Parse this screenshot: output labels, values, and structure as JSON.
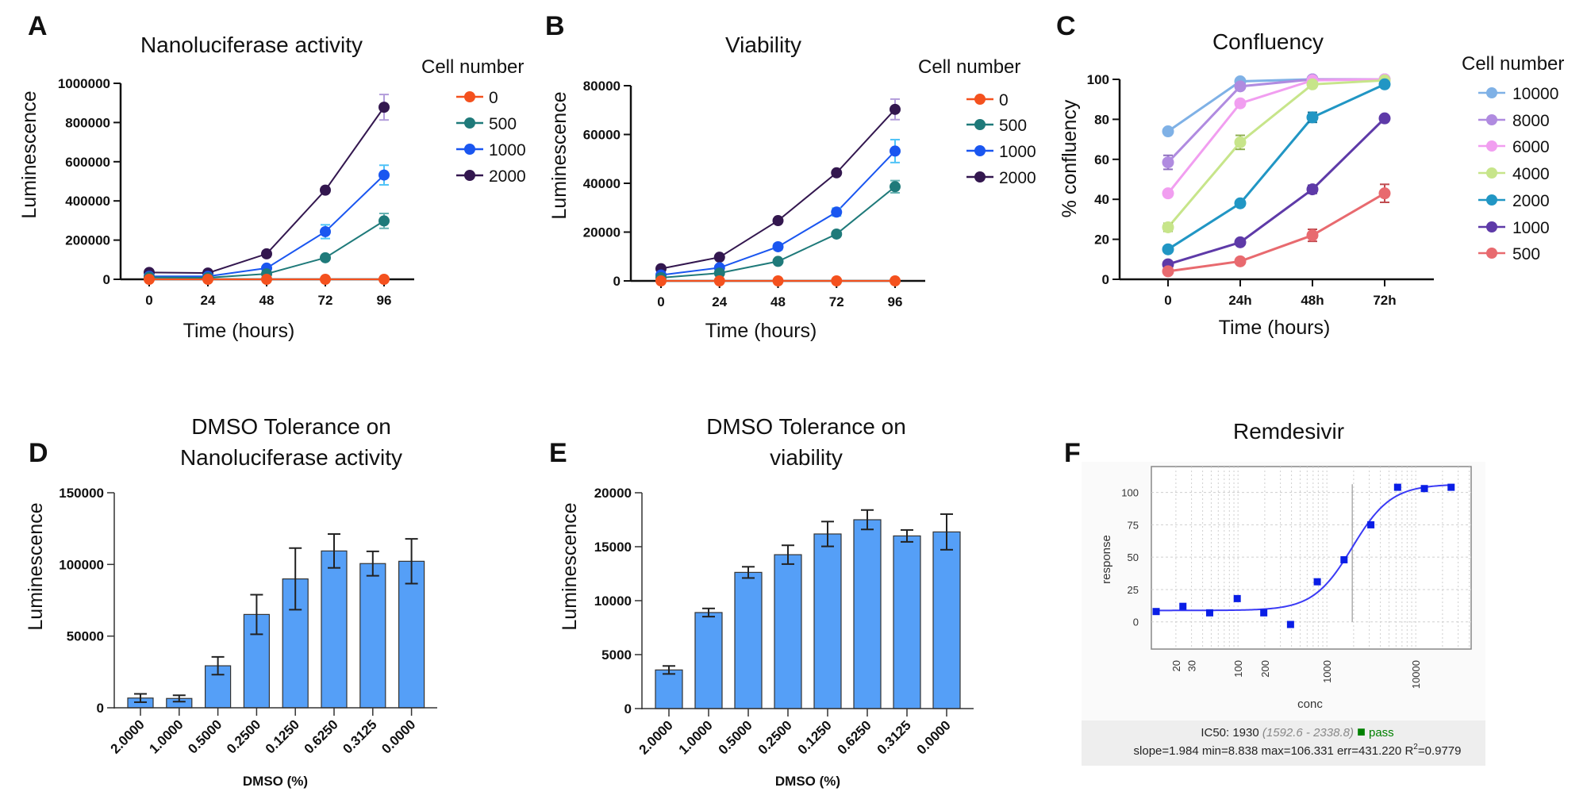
{
  "figure": {
    "panel_labels": [
      "A",
      "B",
      "C",
      "D",
      "E",
      "F"
    ]
  },
  "chart_data": [
    {
      "panel": "A",
      "type": "line",
      "title": "Nanoluciferase activity",
      "xlabel": "Time (hours)",
      "ylabel": "Luminescence",
      "x": [
        0,
        24,
        48,
        72,
        96
      ],
      "x_tick_labels": [
        "0",
        "24",
        "48",
        "72",
        "96"
      ],
      "ylim": [
        0,
        1000000
      ],
      "y_ticks": [
        0,
        200000,
        400000,
        600000,
        800000,
        1000000
      ],
      "grid": false,
      "legend_title": "Cell number",
      "legend_position": "right",
      "series": [
        {
          "name": "0",
          "color": "#f4511e",
          "error_color": "#f4511e",
          "values": [
            0,
            0,
            0,
            0,
            0
          ],
          "errors": [
            0,
            0,
            0,
            0,
            0
          ]
        },
        {
          "name": "500",
          "color": "#1f7a7a",
          "error_color": "#66b2b2",
          "values": [
            10000,
            8000,
            28000,
            110000,
            298000
          ],
          "errors": [
            0,
            0,
            4000,
            8000,
            38000
          ]
        },
        {
          "name": "1000",
          "color": "#1a56f0",
          "error_color": "#4fc3f7",
          "values": [
            15000,
            15000,
            57000,
            243000,
            532000
          ],
          "errors": [
            0,
            0,
            6000,
            35000,
            50000
          ]
        },
        {
          "name": "2000",
          "color": "#33174f",
          "error_color": "#b39ddb",
          "values": [
            35000,
            32000,
            130000,
            455000,
            878000
          ],
          "errors": [
            3000,
            3000,
            15000,
            10000,
            65000
          ]
        }
      ]
    },
    {
      "panel": "B",
      "type": "line",
      "title": "Viability",
      "xlabel": "Time (hours)",
      "ylabel": "Luminescence",
      "x": [
        0,
        24,
        48,
        72,
        96
      ],
      "x_tick_labels": [
        "0",
        "24",
        "48",
        "72",
        "96"
      ],
      "ylim": [
        0,
        80000
      ],
      "y_ticks": [
        0,
        20000,
        40000,
        60000,
        80000
      ],
      "grid": false,
      "legend_title": "Cell number",
      "legend_position": "right",
      "series": [
        {
          "name": "0",
          "color": "#f4511e",
          "error_color": "#f4511e",
          "values": [
            0,
            0,
            0,
            0,
            0
          ],
          "errors": [
            0,
            0,
            0,
            0,
            0
          ]
        },
        {
          "name": "500",
          "color": "#1f7a7a",
          "error_color": "#66b2b2",
          "values": [
            1300,
            3200,
            8000,
            19200,
            38600
          ],
          "errors": [
            0,
            0,
            400,
            600,
            2500
          ]
        },
        {
          "name": "1000",
          "color": "#1a56f0",
          "error_color": "#4fc3f7",
          "values": [
            2400,
            5400,
            14000,
            28200,
            53200
          ],
          "errors": [
            300,
            400,
            1200,
            1600,
            4700
          ]
        },
        {
          "name": "2000",
          "color": "#33174f",
          "error_color": "#b39ddb",
          "values": [
            5000,
            9700,
            24700,
            44300,
            70300
          ],
          "errors": [
            300,
            400,
            600,
            800,
            4200
          ]
        }
      ]
    },
    {
      "panel": "C",
      "type": "line",
      "title": "Confluency",
      "xlabel": "Time (hours)",
      "ylabel": "% confluency",
      "x": [
        0,
        24,
        48,
        72
      ],
      "x_tick_labels": [
        "0",
        "24h",
        "48h",
        "72h"
      ],
      "ylim": [
        0,
        100
      ],
      "y_ticks": [
        0,
        20,
        40,
        60,
        80,
        100
      ],
      "grid": false,
      "legend_title": "Cell number",
      "legend_position": "right",
      "series": [
        {
          "name": "10000",
          "color": "#7fb1e6",
          "error_color": "#7fb1e6",
          "values": [
            74,
            99,
            100,
            100
          ],
          "errors": [
            1,
            1,
            0.5,
            0.5
          ]
        },
        {
          "name": "8000",
          "color": "#b08be0",
          "error_color": "#9070c0",
          "values": [
            58.5,
            96.5,
            100,
            100
          ],
          "errors": [
            3.5,
            1,
            0.5,
            0.5
          ]
        },
        {
          "name": "6000",
          "color": "#f19ef0",
          "error_color": "#e07de0",
          "values": [
            43,
            88,
            99.5,
            100
          ],
          "errors": [
            1.5,
            1.5,
            0.5,
            0.5
          ]
        },
        {
          "name": "4000",
          "color": "#c7e58a",
          "error_color": "#8fb050",
          "values": [
            26,
            68.5,
            97.5,
            99.5
          ],
          "errors": [
            2,
            3.5,
            1,
            0.5
          ]
        },
        {
          "name": "2000",
          "color": "#2196c4",
          "error_color": "#1a6f90",
          "values": [
            15,
            38,
            81,
            97.5
          ],
          "errors": [
            1,
            1,
            2.5,
            1
          ]
        },
        {
          "name": "1000",
          "color": "#5e3aa8",
          "error_color": "#3e2578",
          "values": [
            7.5,
            18.5,
            45,
            80.5
          ],
          "errors": [
            1,
            1,
            2,
            1
          ]
        },
        {
          "name": "500",
          "color": "#e86a6f",
          "error_color": "#c04a4f",
          "values": [
            4,
            9,
            22,
            43
          ],
          "errors": [
            1,
            1,
            3,
            4.5
          ]
        }
      ]
    },
    {
      "panel": "D",
      "type": "bar",
      "title_lines": [
        "DMSO Tolerance on",
        "Nanoluciferase activity"
      ],
      "xlabel": "DMSO (%)",
      "ylabel": "Luminescence",
      "categories": [
        "2.0000",
        "1.0000",
        "0.5000",
        "0.2500",
        "0.1250",
        "0.6250",
        "0.3125",
        "0.0000"
      ],
      "values": [
        6800,
        6500,
        29300,
        65100,
        89900,
        109400,
        100600,
        102200
      ],
      "errors": [
        2900,
        2200,
        6200,
        13800,
        21500,
        11800,
        8500,
        15600
      ],
      "ylim": [
        0,
        150000
      ],
      "y_ticks": [
        0,
        50000,
        100000,
        150000
      ],
      "grid": false,
      "color": "#559ff7"
    },
    {
      "panel": "E",
      "type": "bar",
      "title_lines": [
        "DMSO Tolerance on",
        "viability"
      ],
      "xlabel": "DMSO (%)",
      "ylabel": "Luminescence",
      "categories": [
        "2.0000",
        "1.0000",
        "0.5000",
        "0.2500",
        "0.1250",
        "0.6250",
        "0.3125",
        "0.0000"
      ],
      "values": [
        3580,
        8900,
        12620,
        14260,
        16180,
        17500,
        16000,
        16370
      ],
      "errors": [
        370,
        380,
        520,
        870,
        1150,
        900,
        550,
        1650
      ],
      "ylim": [
        0,
        20000
      ],
      "y_ticks": [
        0,
        5000,
        10000,
        15000,
        20000
      ],
      "grid": false,
      "color": "#559ff7"
    },
    {
      "panel": "F",
      "type": "scatter",
      "title": "Remdesivir",
      "xlabel": "conc",
      "ylabel": "response",
      "x_scale": "log",
      "xlim": [
        10.6,
        42000
      ],
      "ylim": [
        -21,
        120
      ],
      "x_ticks": [
        20,
        30,
        100,
        200,
        1000,
        10000
      ],
      "y_ticks": [
        0,
        25,
        50,
        75,
        100
      ],
      "grid": true,
      "color": "#0a1ee6",
      "points": [
        {
          "x": 12,
          "y": 8
        },
        {
          "x": 24,
          "y": 12
        },
        {
          "x": 48,
          "y": 7
        },
        {
          "x": 98,
          "y": 18
        },
        {
          "x": 195,
          "y": 7
        },
        {
          "x": 390,
          "y": -2
        },
        {
          "x": 780,
          "y": 31
        },
        {
          "x": 1560,
          "y": 48
        },
        {
          "x": 3125,
          "y": 75
        },
        {
          "x": 6250,
          "y": 104
        },
        {
          "x": 12500,
          "y": 103
        },
        {
          "x": 25000,
          "y": 104
        }
      ],
      "fit": {
        "ic50": 1930,
        "slope": 1.984,
        "min": 8.838,
        "max": 106.331
      },
      "summary": {
        "ic50_label": "IC50: 1930",
        "ci": "(1592.6 - 2338.8)",
        "status": "pass",
        "status_color": "#008000",
        "stats_prefix": "slope=1.984 min=8.838 max=106.331 err=431.220 R",
        "stats_sup": "2",
        "stats_suffix": "=0.9779"
      }
    }
  ]
}
